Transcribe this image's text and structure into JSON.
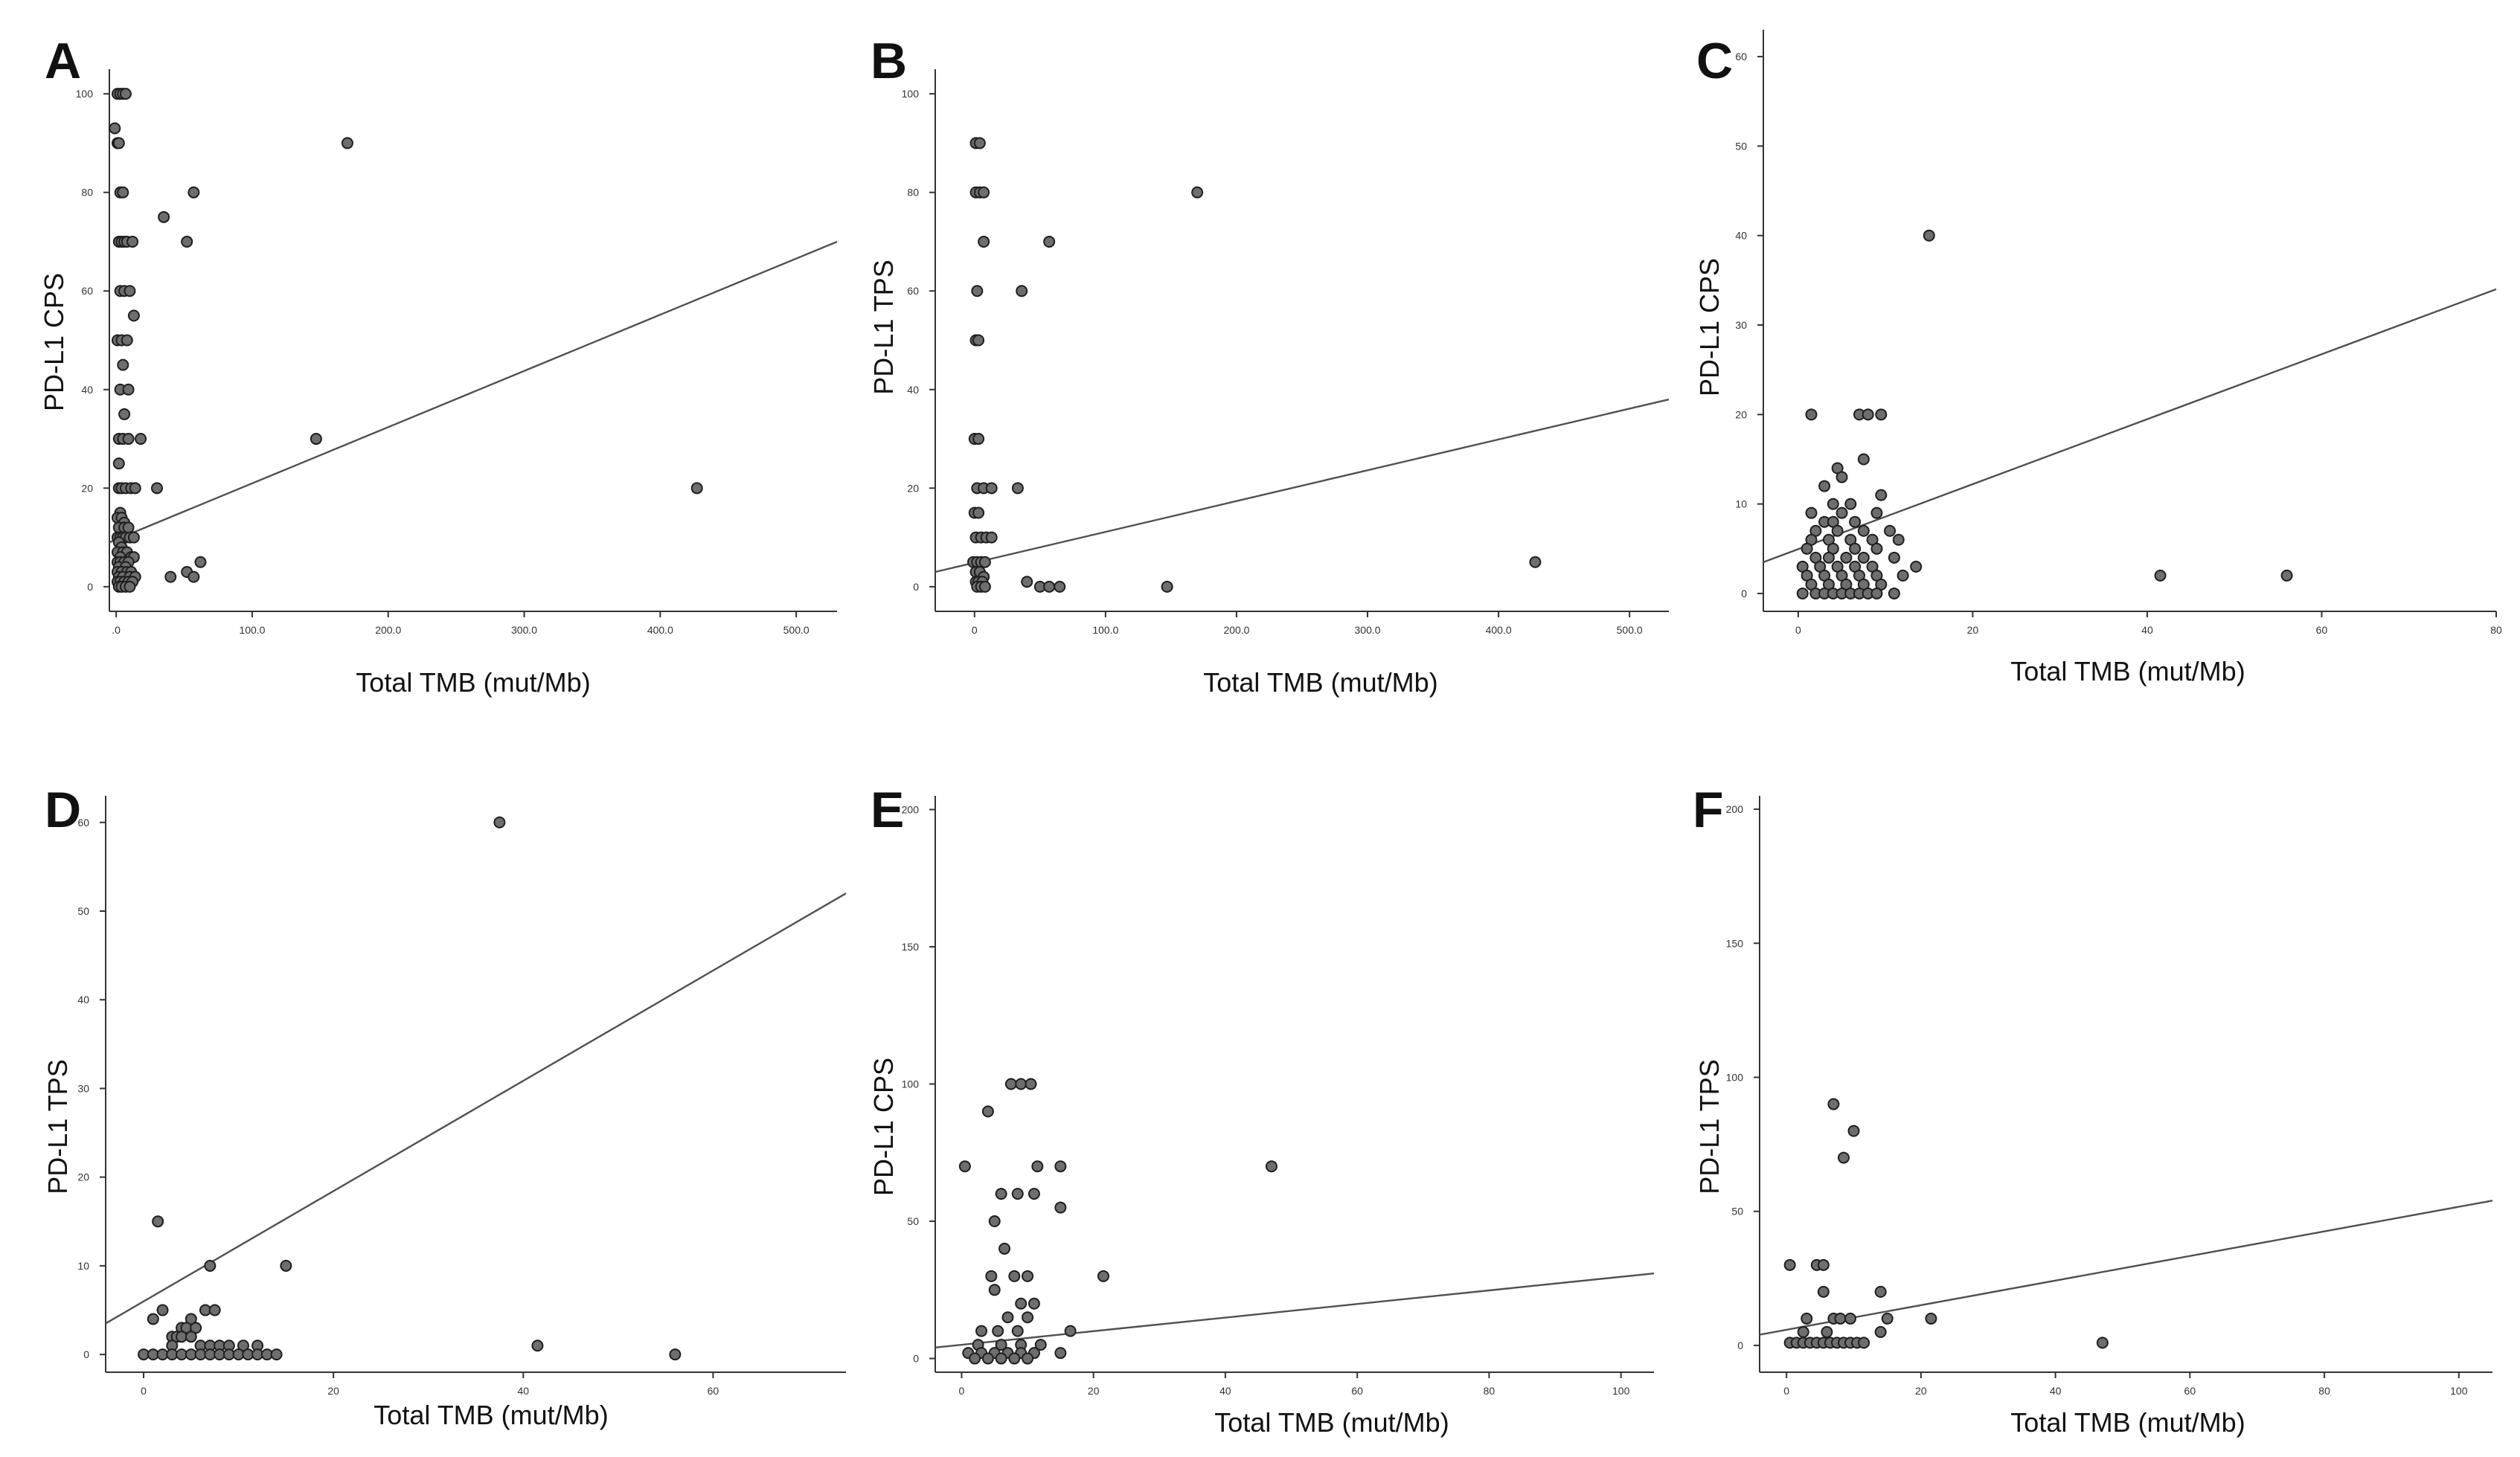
{
  "chart_data": [
    {
      "panel": "A",
      "type": "scatter",
      "xlabel": "Total TMB (mut/Mb)",
      "ylabel": "PD-L1 CPS",
      "xlim": [
        -5,
        530
      ],
      "ylim": [
        -5,
        105
      ],
      "xticks": [
        0,
        100,
        200,
        300,
        400,
        500
      ],
      "xtick_labels": [
        ".0",
        "100.0",
        "200.0",
        "300.0",
        "400.0",
        "500.0"
      ],
      "yticks": [
        0,
        20,
        40,
        60,
        80,
        100
      ],
      "ytick_labels": [
        "0",
        "20",
        "40",
        "60",
        "80",
        "100"
      ],
      "points": [
        [
          1,
          100
        ],
        [
          3,
          100
        ],
        [
          5,
          100
        ],
        [
          7,
          100
        ],
        [
          -1,
          93
        ],
        [
          1,
          90
        ],
        [
          2,
          90
        ],
        [
          3,
          80
        ],
        [
          5,
          80
        ],
        [
          2,
          70
        ],
        [
          4,
          70
        ],
        [
          6,
          70
        ],
        [
          8,
          70
        ],
        [
          12,
          70
        ],
        [
          3,
          60
        ],
        [
          6,
          60
        ],
        [
          10,
          60
        ],
        [
          13,
          55
        ],
        [
          1,
          50
        ],
        [
          4,
          50
        ],
        [
          8,
          50
        ],
        [
          5,
          45
        ],
        [
          3,
          40
        ],
        [
          9,
          40
        ],
        [
          6,
          35
        ],
        [
          2,
          30
        ],
        [
          5,
          30
        ],
        [
          9,
          30
        ],
        [
          18,
          30
        ],
        [
          2,
          25
        ],
        [
          2,
          20
        ],
        [
          4,
          20
        ],
        [
          7,
          20
        ],
        [
          11,
          20
        ],
        [
          14,
          20
        ],
        [
          3,
          15
        ],
        [
          1,
          14
        ],
        [
          4,
          14
        ],
        [
          6,
          13
        ],
        [
          2,
          12
        ],
        [
          6,
          12
        ],
        [
          9,
          12
        ],
        [
          1,
          10
        ],
        [
          3,
          10
        ],
        [
          5,
          10
        ],
        [
          7,
          10
        ],
        [
          10,
          10
        ],
        [
          13,
          10
        ],
        [
          2,
          9
        ],
        [
          4,
          8
        ],
        [
          1,
          7
        ],
        [
          5,
          7
        ],
        [
          8,
          7
        ],
        [
          3,
          6
        ],
        [
          11,
          6
        ],
        [
          13,
          6
        ],
        [
          1,
          5
        ],
        [
          3,
          5
        ],
        [
          6,
          5
        ],
        [
          9,
          5
        ],
        [
          2,
          4
        ],
        [
          7,
          4
        ],
        [
          1,
          3
        ],
        [
          4,
          3
        ],
        [
          8,
          3
        ],
        [
          11,
          3
        ],
        [
          2,
          2
        ],
        [
          5,
          2
        ],
        [
          10,
          2
        ],
        [
          14,
          2
        ],
        [
          1,
          1
        ],
        [
          3,
          1
        ],
        [
          6,
          1
        ],
        [
          9,
          1
        ],
        [
          12,
          1
        ],
        [
          2,
          0
        ],
        [
          4,
          0
        ],
        [
          7,
          0
        ],
        [
          10,
          0
        ],
        [
          35,
          75
        ],
        [
          52,
          70
        ],
        [
          57,
          80
        ],
        [
          30,
          20
        ],
        [
          40,
          2
        ],
        [
          52,
          3
        ],
        [
          57,
          2
        ],
        [
          62,
          5
        ],
        [
          147,
          30
        ],
        [
          170,
          90
        ],
        [
          427,
          20
        ]
      ],
      "fit": [
        [
          -5,
          9
        ],
        [
          530,
          70
        ]
      ]
    },
    {
      "panel": "B",
      "type": "scatter",
      "xlabel": "Total TMB (mut/Mb)",
      "ylabel": "PD-L1 TPS",
      "xlim": [
        -30,
        530
      ],
      "ylim": [
        -5,
        105
      ],
      "xticks": [
        0,
        100,
        200,
        300,
        400,
        500
      ],
      "xtick_labels": [
        "0",
        "100.0",
        "200.0",
        "300.0",
        "400.0",
        "500.0"
      ],
      "yticks": [
        0,
        20,
        40,
        60,
        80,
        100
      ],
      "ytick_labels": [
        "0",
        "20",
        "40",
        "60",
        "80",
        "100"
      ],
      "points": [
        [
          1,
          90
        ],
        [
          4,
          90
        ],
        [
          1,
          80
        ],
        [
          4,
          80
        ],
        [
          7,
          80
        ],
        [
          7,
          70
        ],
        [
          2,
          60
        ],
        [
          1,
          50
        ],
        [
          3,
          50
        ],
        [
          0,
          30
        ],
        [
          3,
          30
        ],
        [
          2,
          20
        ],
        [
          7,
          20
        ],
        [
          13,
          20
        ],
        [
          0,
          15
        ],
        [
          3,
          15
        ],
        [
          1,
          10
        ],
        [
          5,
          10
        ],
        [
          9,
          10
        ],
        [
          13,
          10
        ],
        [
          -1,
          5
        ],
        [
          2,
          5
        ],
        [
          5,
          5
        ],
        [
          8,
          5
        ],
        [
          1,
          3
        ],
        [
          4,
          3
        ],
        [
          7,
          2
        ],
        [
          1,
          1
        ],
        [
          3,
          1
        ],
        [
          6,
          1
        ],
        [
          2,
          0
        ],
        [
          5,
          0
        ],
        [
          8,
          0
        ],
        [
          57,
          70
        ],
        [
          36,
          60
        ],
        [
          33,
          20
        ],
        [
          40,
          1
        ],
        [
          50,
          0
        ],
        [
          57,
          0
        ],
        [
          65,
          0
        ],
        [
          147,
          0
        ],
        [
          170,
          80
        ],
        [
          428,
          5
        ]
      ],
      "fit": [
        [
          -30,
          3
        ],
        [
          530,
          38
        ]
      ]
    },
    {
      "panel": "C",
      "type": "scatter",
      "xlabel": "Total TMB (mut/Mb)",
      "ylabel": "PD-L1 CPS",
      "xlim": [
        -4,
        80
      ],
      "ylim": [
        -2,
        63
      ],
      "xticks": [
        0,
        20,
        40,
        60,
        80
      ],
      "xtick_labels": [
        "0",
        "20",
        "40",
        "60",
        "80"
      ],
      "yticks": [
        0,
        10,
        20,
        30,
        40,
        50,
        60
      ],
      "ytick_labels": [
        "0",
        "10",
        "20",
        "30",
        "40",
        "50",
        "60"
      ],
      "points": [
        [
          1.5,
          20
        ],
        [
          7,
          20
        ],
        [
          8,
          20
        ],
        [
          9.5,
          20
        ],
        [
          7.5,
          15
        ],
        [
          4.5,
          14
        ],
        [
          5,
          13
        ],
        [
          3,
          12
        ],
        [
          9.5,
          11
        ],
        [
          4,
          10
        ],
        [
          6,
          10
        ],
        [
          1.5,
          9
        ],
        [
          5,
          9
        ],
        [
          9,
          9
        ],
        [
          3,
          8
        ],
        [
          4,
          8
        ],
        [
          6.5,
          8
        ],
        [
          2,
          7
        ],
        [
          4.5,
          7
        ],
        [
          7.5,
          7
        ],
        [
          10.5,
          7
        ],
        [
          1.5,
          6
        ],
        [
          3.5,
          6
        ],
        [
          6,
          6
        ],
        [
          8.5,
          6
        ],
        [
          11.5,
          6
        ],
        [
          1,
          5
        ],
        [
          4,
          5
        ],
        [
          6.5,
          5
        ],
        [
          9,
          5
        ],
        [
          2,
          4
        ],
        [
          3.5,
          4
        ],
        [
          5.5,
          4
        ],
        [
          7.5,
          4
        ],
        [
          11,
          4
        ],
        [
          0.5,
          3
        ],
        [
          2.5,
          3
        ],
        [
          4.5,
          3
        ],
        [
          6.5,
          3
        ],
        [
          8.5,
          3
        ],
        [
          13.5,
          3
        ],
        [
          1,
          2
        ],
        [
          3,
          2
        ],
        [
          5,
          2
        ],
        [
          7,
          2
        ],
        [
          9,
          2
        ],
        [
          12,
          2
        ],
        [
          1.5,
          1
        ],
        [
          3.5,
          1
        ],
        [
          5.5,
          1
        ],
        [
          7.5,
          1
        ],
        [
          9.5,
          1
        ],
        [
          0.5,
          0
        ],
        [
          2,
          0
        ],
        [
          3,
          0
        ],
        [
          4,
          0
        ],
        [
          5,
          0
        ],
        [
          6,
          0
        ],
        [
          7,
          0
        ],
        [
          8,
          0
        ],
        [
          9,
          0
        ],
        [
          11,
          0
        ],
        [
          15,
          40
        ],
        [
          41.5,
          2
        ],
        [
          56,
          2
        ]
      ],
      "fit": [
        [
          -4,
          3.5
        ],
        [
          80,
          34
        ]
      ]
    },
    {
      "panel": "D",
      "type": "scatter",
      "xlabel": "Total TMB (mut/Mb)",
      "ylabel": "PD-L1 TPS",
      "xlim": [
        -4,
        74
      ],
      "ylim": [
        -2,
        63
      ],
      "xticks": [
        0,
        20,
        40,
        60
      ],
      "xtick_labels": [
        "0",
        "20",
        "40",
        "60"
      ],
      "yticks": [
        0,
        10,
        20,
        30,
        40,
        50,
        60
      ],
      "ytick_labels": [
        "0",
        "10",
        "20",
        "30",
        "40",
        "50",
        "60"
      ],
      "points": [
        [
          1.5,
          15
        ],
        [
          7,
          10
        ],
        [
          15,
          10
        ],
        [
          6.5,
          5
        ],
        [
          7.5,
          5
        ],
        [
          1,
          4
        ],
        [
          5,
          4
        ],
        [
          2,
          5
        ],
        [
          4,
          3
        ],
        [
          4.5,
          3
        ],
        [
          5.5,
          3
        ],
        [
          3,
          2
        ],
        [
          3.5,
          2
        ],
        [
          4,
          2
        ],
        [
          5,
          2
        ],
        [
          6,
          1
        ],
        [
          7,
          1
        ],
        [
          8,
          1
        ],
        [
          9,
          1
        ],
        [
          10.5,
          1
        ],
        [
          3,
          1
        ],
        [
          12,
          1
        ],
        [
          0,
          0
        ],
        [
          1,
          0
        ],
        [
          2,
          0
        ],
        [
          3,
          0
        ],
        [
          4,
          0
        ],
        [
          5,
          0
        ],
        [
          6,
          0
        ],
        [
          7,
          0
        ],
        [
          8,
          0
        ],
        [
          9,
          0
        ],
        [
          10,
          0
        ],
        [
          11,
          0
        ],
        [
          12,
          0
        ],
        [
          13,
          0
        ],
        [
          14,
          0
        ],
        [
          37.5,
          60
        ],
        [
          41.5,
          1
        ],
        [
          56,
          0
        ]
      ],
      "fit": [
        [
          -4,
          3.5
        ],
        [
          74,
          52
        ]
      ]
    },
    {
      "panel": "E",
      "type": "scatter",
      "xlabel": "Total TMB (mut/Mb)",
      "ylabel": "PD-L1 CPS",
      "xlim": [
        -4,
        105
      ],
      "ylim": [
        -5,
        205
      ],
      "xticks": [
        0,
        20,
        40,
        60,
        80,
        100
      ],
      "xtick_labels": [
        "0",
        "20",
        "40",
        "60",
        "80",
        "100"
      ],
      "yticks": [
        0,
        50,
        100,
        150,
        200
      ],
      "ytick_labels": [
        "0",
        "50",
        "100",
        "150",
        "200"
      ],
      "points": [
        [
          0.5,
          70
        ],
        [
          4,
          90
        ],
        [
          7.5,
          100
        ],
        [
          9,
          100
        ],
        [
          10.5,
          100
        ],
        [
          11.5,
          70
        ],
        [
          15,
          70
        ],
        [
          6,
          60
        ],
        [
          8.5,
          60
        ],
        [
          11,
          60
        ],
        [
          15,
          55
        ],
        [
          5,
          50
        ],
        [
          6.5,
          40
        ],
        [
          4.5,
          30
        ],
        [
          8,
          30
        ],
        [
          10,
          30
        ],
        [
          5,
          25
        ],
        [
          9,
          20
        ],
        [
          11,
          20
        ],
        [
          7,
          15
        ],
        [
          10,
          15
        ],
        [
          16.5,
          10
        ],
        [
          3,
          10
        ],
        [
          5.5,
          10
        ],
        [
          8.5,
          10
        ],
        [
          2.5,
          5
        ],
        [
          6,
          5
        ],
        [
          9,
          5
        ],
        [
          12,
          5
        ],
        [
          1,
          2
        ],
        [
          3,
          2
        ],
        [
          5,
          2
        ],
        [
          7,
          2
        ],
        [
          9,
          2
        ],
        [
          11,
          2
        ],
        [
          15,
          2
        ],
        [
          2,
          0
        ],
        [
          4,
          0
        ],
        [
          6,
          0
        ],
        [
          8,
          0
        ],
        [
          10,
          0
        ],
        [
          21.5,
          30
        ],
        [
          47,
          70
        ]
      ],
      "fit": [
        [
          -4,
          4
        ],
        [
          105,
          31
        ]
      ]
    },
    {
      "panel": "F",
      "type": "scatter",
      "xlabel": "Total TMB (mut/Mb)",
      "ylabel": "PD-L1 TPS",
      "xlim": [
        -4,
        105
      ],
      "ylim": [
        -10,
        205
      ],
      "xticks": [
        0,
        20,
        40,
        60,
        80,
        100
      ],
      "xtick_labels": [
        "0",
        "20",
        "40",
        "60",
        "80",
        "100"
      ],
      "yticks": [
        0,
        50,
        100,
        150,
        200
      ],
      "ytick_labels": [
        "0",
        "50",
        "100",
        "150",
        "200"
      ],
      "points": [
        [
          7,
          90
        ],
        [
          10,
          80
        ],
        [
          8.5,
          70
        ],
        [
          0.5,
          30
        ],
        [
          4.5,
          30
        ],
        [
          5.5,
          30
        ],
        [
          5.5,
          20
        ],
        [
          14,
          20
        ],
        [
          3,
          10
        ],
        [
          7,
          10
        ],
        [
          8,
          10
        ],
        [
          9.5,
          10
        ],
        [
          15,
          10
        ],
        [
          21.5,
          10
        ],
        [
          2.5,
          5
        ],
        [
          6,
          5
        ],
        [
          14,
          5
        ],
        [
          0.5,
          1
        ],
        [
          1.5,
          1
        ],
        [
          2.5,
          1
        ],
        [
          3.5,
          1
        ],
        [
          4.5,
          1
        ],
        [
          5.5,
          1
        ],
        [
          6.5,
          1
        ],
        [
          7.5,
          1
        ],
        [
          8.5,
          1
        ],
        [
          9.5,
          1
        ],
        [
          10.5,
          1
        ],
        [
          11.5,
          1
        ],
        [
          47,
          1
        ]
      ],
      "fit": [
        [
          -4,
          4
        ],
        [
          105,
          54
        ]
      ]
    }
  ]
}
